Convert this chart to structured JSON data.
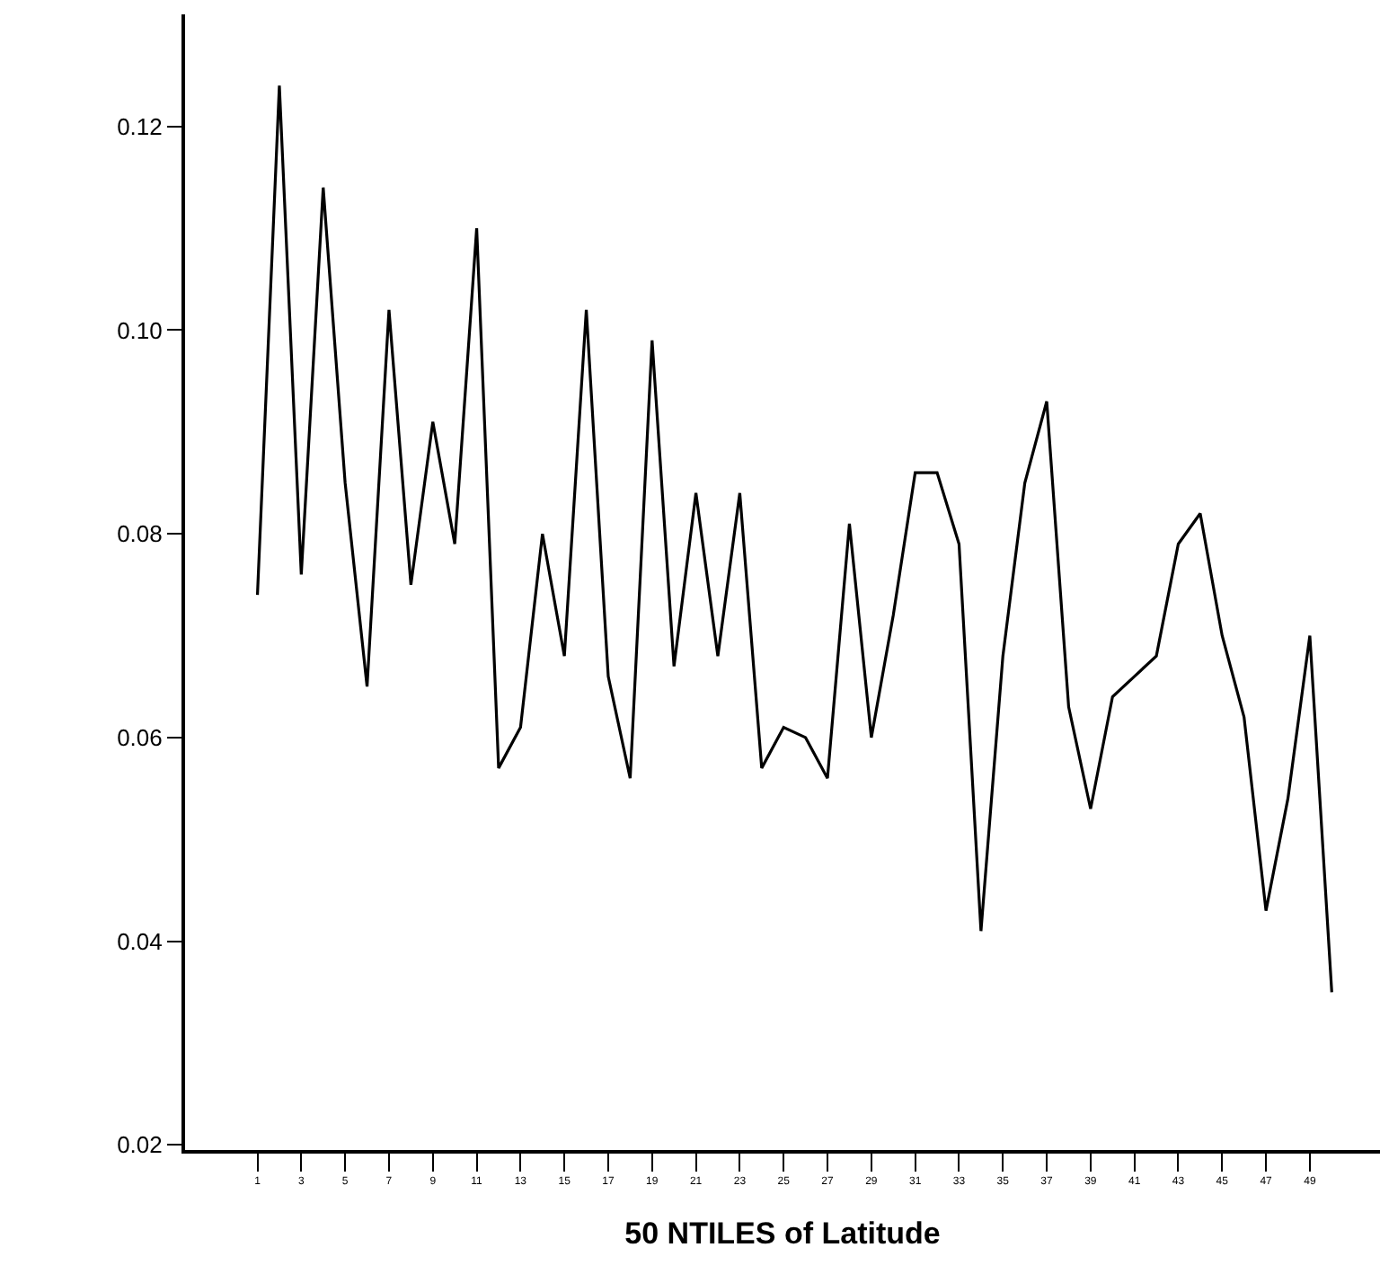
{
  "chart_data": {
    "type": "line",
    "xlabel": "50 NTILES of Latitude",
    "x": [
      1,
      2,
      3,
      4,
      5,
      6,
      7,
      8,
      9,
      10,
      11,
      12,
      13,
      14,
      15,
      16,
      17,
      18,
      19,
      20,
      21,
      22,
      23,
      24,
      25,
      26,
      27,
      28,
      29,
      30,
      31,
      32,
      33,
      34,
      35,
      36,
      37,
      38,
      39,
      40,
      41,
      42,
      43,
      44,
      45,
      46,
      47,
      48,
      49,
      50
    ],
    "series": [
      {
        "color": "#000000",
        "values": [
          0.074,
          0.124,
          0.076,
          0.114,
          0.085,
          0.065,
          0.102,
          0.075,
          0.091,
          0.079,
          0.11,
          0.057,
          0.061,
          0.08,
          0.068,
          0.102,
          0.066,
          0.056,
          0.099,
          0.067,
          0.084,
          0.068,
          0.084,
          0.057,
          0.061,
          0.06,
          0.056,
          0.081,
          0.06,
          0.072,
          0.086,
          0.086,
          0.079,
          0.041,
          0.068,
          0.085,
          0.093,
          0.063,
          0.053,
          0.064,
          0.066,
          0.068,
          0.079,
          0.082,
          0.07,
          0.062,
          0.043,
          0.054,
          0.07,
          0.035
        ]
      }
    ],
    "xlim": [
      -2.3,
      52.2
    ],
    "xticks": [
      1,
      3,
      5,
      7,
      9,
      11,
      13,
      15,
      17,
      19,
      21,
      23,
      25,
      27,
      29,
      31,
      33,
      35,
      37,
      39,
      41,
      43,
      45,
      47,
      49
    ],
    "ylim": [
      0.0195,
      0.131
    ],
    "yticks": [
      {
        "value": 0.02,
        "label": "0.02"
      },
      {
        "value": 0.04,
        "label": "0.04"
      },
      {
        "value": 0.06,
        "label": "0.06"
      },
      {
        "value": 0.08,
        "label": "0.08"
      },
      {
        "value": 0.1,
        "label": "0.10"
      },
      {
        "value": 0.12,
        "label": "0.12"
      }
    ],
    "grid": false,
    "marker": "none",
    "line_style": "solid"
  }
}
